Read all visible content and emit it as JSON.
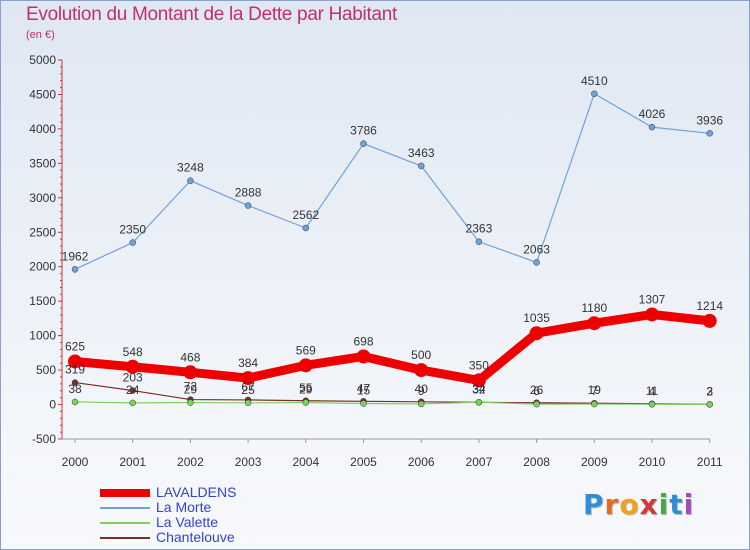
{
  "title": "Evolution du Montant de la Dette par Habitant",
  "subtitle": "(en €)",
  "colors": {
    "title": "#c0306a",
    "legend_text": "#3344cc",
    "axis_text": "#333333",
    "axis_line": "#cc3333"
  },
  "logo": {
    "letters": [
      "P",
      "r",
      "o",
      "x",
      "i",
      "t",
      "i"
    ],
    "colors": [
      "#2d8fd6",
      "#e36a1e",
      "#f0a020",
      "#d23a3a",
      "#49a83f",
      "#2d8fd6",
      "#a54bc2"
    ]
  },
  "chart_data": {
    "type": "line",
    "title": "Evolution du Montant de la Dette par Habitant",
    "subtitle": "(en €)",
    "xlabel": "",
    "ylabel": "",
    "categories": [
      "2000",
      "2001",
      "2002",
      "2003",
      "2004",
      "2005",
      "2006",
      "2007",
      "2008",
      "2009",
      "2010",
      "2011"
    ],
    "ylim": [
      -500,
      5000
    ],
    "yticks": [
      -500,
      0,
      500,
      1000,
      1500,
      2000,
      2500,
      3000,
      3500,
      4000,
      4500,
      5000
    ],
    "grid": false,
    "legend_position": "bottom-left",
    "series": [
      {
        "name": "LAVALDENS",
        "color": "#ee0000",
        "line_width": 9,
        "marker_radius": 7,
        "values": [
          625,
          548,
          468,
          384,
          569,
          698,
          500,
          350,
          1035,
          1180,
          1307,
          1214
        ]
      },
      {
        "name": "La Morte",
        "color": "#6fa2d8",
        "line_width": 1.2,
        "marker_radius": 3,
        "values": [
          1962,
          2350,
          3248,
          2888,
          2562,
          3786,
          3463,
          2363,
          2063,
          4510,
          4026,
          3936
        ]
      },
      {
        "name": "La Valette",
        "color": "#7fd05a",
        "line_width": 1.2,
        "marker_radius": 3,
        "values": [
          38,
          24,
          29,
          25,
          29,
          15,
          9,
          34,
          6,
          7,
          4,
          2
        ]
      },
      {
        "name": "Chantelouve",
        "color": "#7a2d2d",
        "line_width": 1.2,
        "marker_radius": 3,
        "values": [
          319,
          203,
          72,
          67,
          55,
          47,
          40,
          32,
          26,
          19,
          11,
          3
        ]
      }
    ]
  }
}
